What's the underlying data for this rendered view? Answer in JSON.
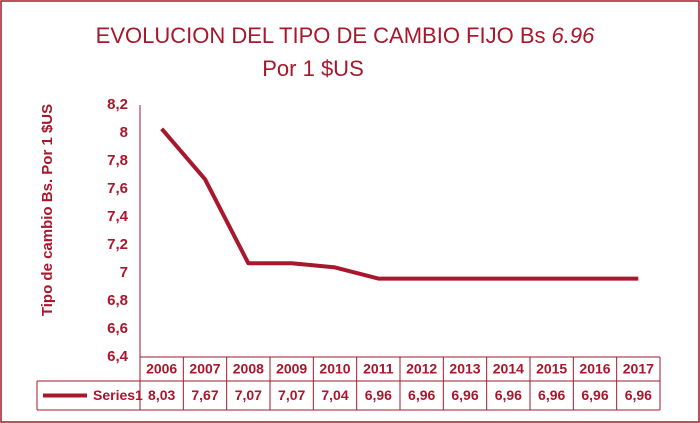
{
  "chart_data": {
    "type": "line",
    "title": "EVOLUCION DEL TIPO DE CAMBIO FIJO Bs",
    "title_suffix": "6.96",
    "subtitle": "Por 1 $US",
    "y_label": "Tipo de cambio Bs. Por 1 $US",
    "categories": [
      "2006",
      "2007",
      "2008",
      "2009",
      "2010",
      "2011",
      "2012",
      "2013",
      "2014",
      "2015",
      "2016",
      "2017"
    ],
    "series": [
      {
        "name": "Series1",
        "color": "#a8172b",
        "values": [
          8.03,
          7.67,
          7.07,
          7.07,
          7.04,
          6.96,
          6.96,
          6.96,
          6.96,
          6.96,
          6.96,
          6.96
        ],
        "value_labels": [
          "8,03",
          "7,67",
          "7,07",
          "7,07",
          "7,04",
          "6,96",
          "6,96",
          "6,96",
          "6,96",
          "6,96",
          "6,96",
          "6,96"
        ]
      }
    ],
    "ylim": [
      6.4,
      8.2
    ],
    "yticks": [
      {
        "value": 6.4,
        "label": "6,4"
      },
      {
        "value": 6.6,
        "label": "6,6"
      },
      {
        "value": 6.8,
        "label": "6,8"
      },
      {
        "value": 7,
        "label": "7"
      },
      {
        "value": 7.2,
        "label": "7,2"
      },
      {
        "value": 7.4,
        "label": "7,4"
      },
      {
        "value": 7.6,
        "label": "7,6"
      },
      {
        "value": 7.8,
        "label": "7,8"
      },
      {
        "value": 8,
        "label": "8"
      },
      {
        "value": 8.2,
        "label": "8,2"
      }
    ],
    "grid": false
  }
}
